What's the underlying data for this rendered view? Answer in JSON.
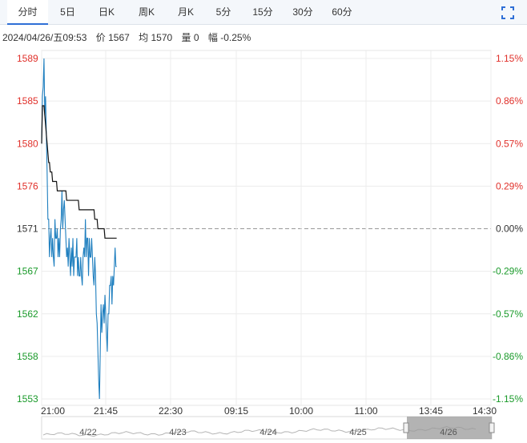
{
  "tabs": [
    {
      "label": "分时",
      "active": true
    },
    {
      "label": "5日",
      "active": false
    },
    {
      "label": "日K",
      "active": false
    },
    {
      "label": "周K",
      "active": false
    },
    {
      "label": "月K",
      "active": false
    },
    {
      "label": "5分",
      "active": false
    },
    {
      "label": "15分",
      "active": false
    },
    {
      "label": "30分",
      "active": false
    },
    {
      "label": "60分",
      "active": false
    }
  ],
  "toolbar": {
    "fullscreen_icon": "fullscreen-icon"
  },
  "info": {
    "datetime": "2024/04/26/五09:53",
    "price": "价 1567",
    "avg": "均 1570",
    "volume": "量 0",
    "change": "幅 -0.25%"
  },
  "colors": {
    "up": "#e0302a",
    "down": "#1a9a2a",
    "neutral": "#333333",
    "price_line": "#1f7fbf",
    "avg_line": "#111111"
  },
  "chart_data": {
    "type": "line",
    "ylim": [
      1553,
      1589
    ],
    "prev_close": 1571,
    "y_ticks_left": [
      "1589",
      "1585",
      "1580",
      "1576",
      "1571",
      "1567",
      "1562",
      "1558",
      "1553"
    ],
    "y_ticks_right": [
      "1.15%",
      "0.86%",
      "0.57%",
      "0.29%",
      "0.00%",
      "-0.29%",
      "-0.57%",
      "-0.86%",
      "-1.15%"
    ],
    "x_ticks": [
      "21:00",
      "21:45",
      "22:30",
      "09:15",
      "10:00",
      "11:00",
      "13:45",
      "14:30"
    ],
    "series": [
      {
        "values": [
          1580,
          1585,
          1586,
          1589,
          1583,
          1585,
          1581,
          1577,
          1572,
          1572,
          1568,
          1570,
          1571,
          1568,
          1570,
          1568,
          1567,
          1572,
          1570,
          1570,
          1571,
          1568,
          1570,
          1568,
          1571,
          1572,
          1575,
          1571,
          1573,
          1574,
          1572,
          1570,
          1568,
          1569,
          1567,
          1570,
          1568,
          1566,
          1569,
          1567,
          1570,
          1566,
          1568,
          1568,
          1568,
          1570,
          1566,
          1568,
          1566,
          1566,
          1568,
          1566,
          1565,
          1568,
          1569,
          1568,
          1572,
          1568,
          1570,
          1570,
          1566,
          1570,
          1568,
          1568,
          1570,
          1568,
          1566,
          1565,
          1568,
          1566,
          1562,
          1561,
          1558,
          1555,
          1553,
          1558,
          1563,
          1560,
          1562,
          1563,
          1561,
          1564,
          1562,
          1560,
          1558,
          1562,
          1562,
          1565,
          1565,
          1566,
          1563,
          1566,
          1565,
          1567,
          1569,
          1567,
          1567
        ]
      },
      {
        "values": [
          1580,
          1584,
          1584,
          1584,
          1583,
          1582,
          1581,
          1580,
          1579,
          1578,
          1578,
          1577,
          1577,
          1577,
          1576,
          1576,
          1576,
          1576,
          1576,
          1576,
          1575,
          1575,
          1575,
          1575,
          1575,
          1575,
          1575,
          1575,
          1575,
          1575,
          1575,
          1575,
          1574,
          1574,
          1574,
          1574,
          1574,
          1574,
          1574,
          1574,
          1574,
          1574,
          1574,
          1574,
          1574,
          1574,
          1574,
          1574,
          1573,
          1573,
          1573,
          1573,
          1573,
          1573,
          1573,
          1573,
          1573,
          1573,
          1573,
          1573,
          1573,
          1573,
          1573,
          1573,
          1573,
          1573,
          1573,
          1573,
          1572,
          1572,
          1572,
          1572,
          1571,
          1571,
          1571,
          1571,
          1571,
          1571,
          1571,
          1571,
          1571,
          1570,
          1570,
          1570,
          1570,
          1570,
          1570,
          1570,
          1570,
          1570,
          1570,
          1570,
          1570,
          1570,
          1570,
          1570,
          1570
        ]
      }
    ],
    "navigator": {
      "labels": [
        "4/22",
        "4/23",
        "4/24",
        "4/25",
        "4/26"
      ],
      "selected": "4/26"
    }
  }
}
